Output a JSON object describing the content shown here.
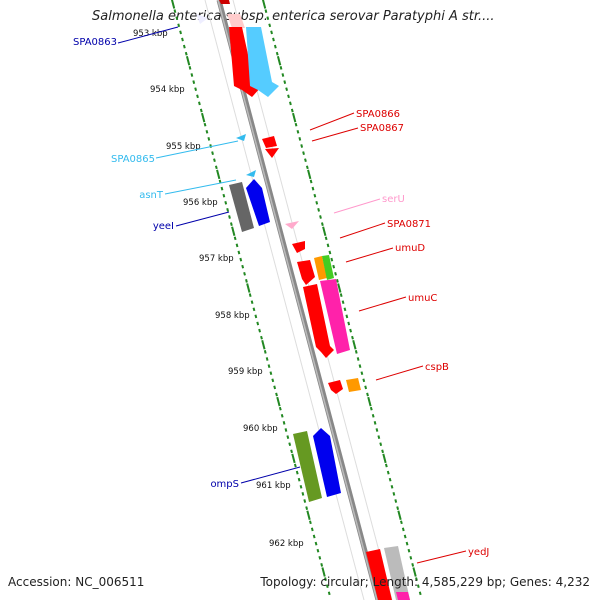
{
  "title": "Salmonella enterica subsp. enterica serovar Paratyphi A str....",
  "accession": "Accession: NC_006511",
  "topology": "Topology: circular; Length: 4,585,229 bp; Genes: 4,232",
  "ticks": [
    "953 kbp",
    "954 kbp",
    "955 kbp",
    "956 kbp",
    "957 kbp",
    "958 kbp",
    "959 kbp",
    "960 kbp",
    "961 kbp",
    "962 kbp"
  ],
  "gene_labels": [
    {
      "name": "SPA0863",
      "side": "left",
      "color": "#0000aa"
    },
    {
      "name": "SPA0865",
      "side": "left",
      "color": "#33bbee"
    },
    {
      "name": "asnT",
      "side": "left",
      "color": "#33bbee"
    },
    {
      "name": "yeeI",
      "side": "left",
      "color": "#0000aa"
    },
    {
      "name": "ompS",
      "side": "left",
      "color": "#0000aa"
    },
    {
      "name": "SPA0866",
      "side": "right",
      "color": "#dd0000"
    },
    {
      "name": "SPA0867",
      "side": "right",
      "color": "#dd0000"
    },
    {
      "name": "serU",
      "side": "right",
      "color": "#ff99cc"
    },
    {
      "name": "SPA0871",
      "side": "right",
      "color": "#dd0000"
    },
    {
      "name": "umuD",
      "side": "right",
      "color": "#dd0000"
    },
    {
      "name": "umuC",
      "side": "right",
      "color": "#dd0000"
    },
    {
      "name": "cspB",
      "side": "right",
      "color": "#dd0000"
    },
    {
      "name": "yedJ",
      "side": "right",
      "color": "#dd0000"
    }
  ],
  "colors": {
    "backbone": "#888888",
    "ticks": "#228822",
    "red": "#ff0000",
    "blue": "#0000ee",
    "light_blue": "#55ccff",
    "gray": "#666666",
    "olive": "#669922",
    "magenta": "#ff22aa",
    "orange": "#ff9900",
    "green": "#44cc22",
    "pink": "#ffaacc"
  }
}
